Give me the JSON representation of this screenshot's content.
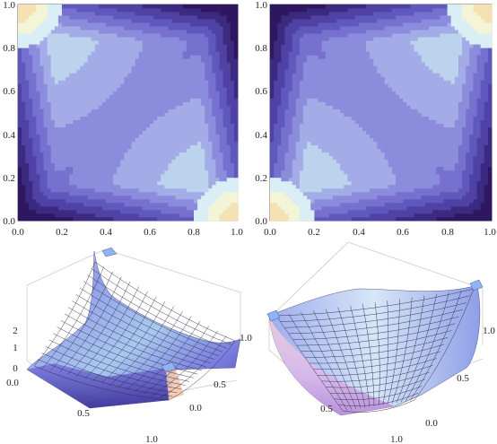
{
  "figure": {
    "contour_ticks": [
      "0.0",
      "0.2",
      "0.4",
      "0.6",
      "0.8",
      "1.0"
    ],
    "surface_z_ticks": [
      "0",
      "1",
      "2"
    ],
    "surface_axis_ticks": [
      "0.0",
      "0.5",
      "1.0"
    ]
  },
  "chart_data": [
    {
      "type": "heatmap",
      "subtype": "contour",
      "panel": "top-left",
      "x_range": [
        0,
        1
      ],
      "y_range": [
        0,
        1
      ],
      "x_ticks": [
        0.0,
        0.2,
        0.4,
        0.6,
        0.8,
        1.0
      ],
      "y_ticks": [
        0.0,
        0.2,
        0.4,
        0.6,
        0.8,
        1.0
      ],
      "peaks": [
        [
          0,
          1
        ],
        [
          1,
          0
        ]
      ],
      "palette": [
        "#2e1760",
        "#3c2a80",
        "#4f42a4",
        "#6059bd",
        "#7671cf",
        "#8b8cdc",
        "#a3ace6",
        "#bcd3ee",
        "#d9eef5",
        "#f3f5d6",
        "#f4e2b4"
      ],
      "xlabel": "",
      "ylabel": "",
      "title": ""
    },
    {
      "type": "heatmap",
      "subtype": "contour",
      "panel": "top-right",
      "x_range": [
        0,
        1
      ],
      "y_range": [
        0,
        1
      ],
      "x_ticks": [
        0.0,
        0.2,
        0.4,
        0.6,
        0.8,
        1.0
      ],
      "y_ticks": [
        0.0,
        0.2,
        0.4,
        0.6,
        0.8,
        1.0
      ],
      "peaks": [
        [
          0,
          0
        ],
        [
          1,
          1
        ]
      ],
      "palette": [
        "#2e1760",
        "#3c2a80",
        "#4f42a4",
        "#6059bd",
        "#7671cf",
        "#8b8cdc",
        "#a3ace6",
        "#bcd3ee",
        "#d9eef5",
        "#f3f5d6",
        "#f4e2b4"
      ],
      "xlabel": "",
      "ylabel": "",
      "title": ""
    },
    {
      "type": "area",
      "subtype": "surface3d",
      "panel": "bottom-left",
      "x_range": [
        0,
        1
      ],
      "y_range": [
        0,
        1
      ],
      "z_range": [
        0,
        2.2
      ],
      "x_ticks": [
        0.0,
        0.5,
        1.0
      ],
      "y_ticks": [
        0.0,
        0.5,
        1.0
      ],
      "z_ticks": [
        0,
        1,
        2
      ],
      "peaks": [
        [
          0,
          1
        ],
        [
          1,
          0
        ]
      ]
    },
    {
      "type": "area",
      "subtype": "surface3d",
      "panel": "bottom-right",
      "x_range": [
        0,
        1
      ],
      "y_range": [
        0,
        1
      ],
      "y_ticks": [
        0.0,
        0.5,
        1.0
      ],
      "peaks": [
        [
          0,
          0
        ],
        [
          1,
          1
        ]
      ]
    }
  ]
}
